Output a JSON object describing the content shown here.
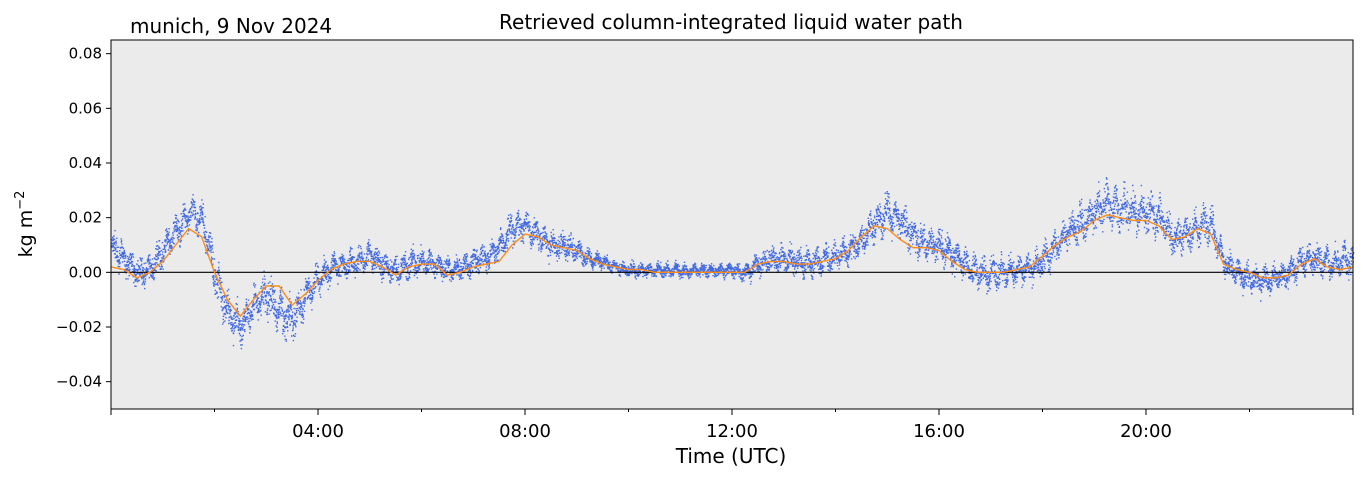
{
  "chart_data": {
    "type": "scatter",
    "title": "Retrieved column-integrated liquid water path",
    "subtitle": "munich, 9 Nov 2024",
    "xlabel": "Time (UTC)",
    "ylabel_base": "kg m",
    "ylabel_exponent": "−2",
    "xlim_hours": [
      0,
      24
    ],
    "ylim": [
      -0.05,
      0.085
    ],
    "x_ticks": [
      {
        "hour": 4,
        "label": "04:00"
      },
      {
        "hour": 8,
        "label": "08:00"
      },
      {
        "hour": 12,
        "label": "12:00"
      },
      {
        "hour": 16,
        "label": "16:00"
      },
      {
        "hour": 20,
        "label": "20:00"
      }
    ],
    "y_ticks": [
      {
        "value": -0.04,
        "label": "−0.04"
      },
      {
        "value": -0.02,
        "label": "−0.02"
      },
      {
        "value": 0.0,
        "label": "0.00"
      },
      {
        "value": 0.02,
        "label": "0.02"
      },
      {
        "value": 0.04,
        "label": "0.04"
      },
      {
        "value": 0.06,
        "label": "0.06"
      },
      {
        "value": 0.08,
        "label": "0.08"
      }
    ],
    "zero_line": true,
    "grid": false,
    "colors": {
      "scatter": "#4169e1",
      "mean_line": "#ff8c1a",
      "background": "#ebebeb",
      "zero_line": "#000000"
    },
    "series": [
      {
        "kind": "scatter",
        "x_hours": [
          0.0,
          0.25,
          0.5,
          0.75,
          1.0,
          1.25,
          1.5,
          1.75,
          2.0,
          2.25,
          2.5,
          2.75,
          3.0,
          3.25,
          3.5,
          3.75,
          4.0,
          4.25,
          4.5,
          4.75,
          5.0,
          5.25,
          5.5,
          5.75,
          6.0,
          6.25,
          6.5,
          6.75,
          7.0,
          7.25,
          7.5,
          7.75,
          8.0,
          8.25,
          8.5,
          8.75,
          9.0,
          9.25,
          9.5,
          9.75,
          10.0,
          10.25,
          10.5,
          10.75,
          11.0,
          11.25,
          11.5,
          11.75,
          12.0,
          12.25,
          12.5,
          12.75,
          13.0,
          13.25,
          13.5,
          13.75,
          14.0,
          14.25,
          14.5,
          14.75,
          15.0,
          15.25,
          15.5,
          15.75,
          16.0,
          16.25,
          16.5,
          16.75,
          17.0,
          17.25,
          17.5,
          17.75,
          18.0,
          18.25,
          18.5,
          18.75,
          19.0,
          19.25,
          19.5,
          19.75,
          20.0,
          20.25,
          20.5,
          20.75,
          21.0,
          21.25,
          21.5,
          21.75,
          22.0,
          22.25,
          22.5,
          22.75,
          23.0,
          23.25,
          23.5,
          23.75,
          24.0
        ],
        "y_center": [
          0.01,
          0.005,
          0.0,
          0.001,
          0.008,
          0.015,
          0.022,
          0.02,
          0.0,
          -0.015,
          -0.02,
          -0.012,
          -0.008,
          -0.014,
          -0.018,
          -0.008,
          -0.002,
          0.002,
          0.003,
          0.004,
          0.006,
          0.003,
          0.001,
          0.003,
          0.004,
          0.003,
          0.001,
          0.002,
          0.004,
          0.006,
          0.01,
          0.016,
          0.017,
          0.014,
          0.01,
          0.01,
          0.008,
          0.005,
          0.004,
          0.002,
          0.001,
          0.001,
          0.001,
          0.001,
          0.001,
          0.001,
          0.001,
          0.001,
          0.001,
          0.0,
          0.003,
          0.005,
          0.005,
          0.004,
          0.004,
          0.005,
          0.006,
          0.008,
          0.012,
          0.018,
          0.022,
          0.019,
          0.013,
          0.011,
          0.01,
          0.007,
          0.003,
          0.0,
          0.0,
          0.0,
          0.001,
          0.002,
          0.004,
          0.01,
          0.015,
          0.018,
          0.022,
          0.025,
          0.024,
          0.022,
          0.022,
          0.02,
          0.013,
          0.014,
          0.017,
          0.018,
          0.004,
          0.0,
          -0.002,
          -0.003,
          -0.002,
          0.0,
          0.004,
          0.005,
          0.004,
          0.004,
          0.005
        ],
        "y_spread": [
          0.007,
          0.006,
          0.006,
          0.006,
          0.007,
          0.007,
          0.007,
          0.007,
          0.009,
          0.009,
          0.008,
          0.008,
          0.009,
          0.009,
          0.009,
          0.008,
          0.007,
          0.006,
          0.006,
          0.006,
          0.006,
          0.006,
          0.006,
          0.006,
          0.006,
          0.005,
          0.005,
          0.005,
          0.006,
          0.006,
          0.006,
          0.007,
          0.007,
          0.006,
          0.006,
          0.006,
          0.005,
          0.004,
          0.003,
          0.003,
          0.003,
          0.003,
          0.003,
          0.003,
          0.003,
          0.003,
          0.003,
          0.003,
          0.003,
          0.004,
          0.005,
          0.006,
          0.006,
          0.006,
          0.006,
          0.006,
          0.006,
          0.006,
          0.007,
          0.008,
          0.009,
          0.008,
          0.008,
          0.007,
          0.007,
          0.007,
          0.007,
          0.007,
          0.007,
          0.007,
          0.006,
          0.006,
          0.007,
          0.007,
          0.007,
          0.008,
          0.009,
          0.01,
          0.01,
          0.009,
          0.009,
          0.009,
          0.008,
          0.007,
          0.007,
          0.007,
          0.006,
          0.006,
          0.006,
          0.006,
          0.006,
          0.006,
          0.007,
          0.007,
          0.007,
          0.007,
          0.007
        ]
      },
      {
        "kind": "line",
        "x_hours": [
          0.0,
          0.25,
          0.5,
          0.75,
          1.0,
          1.25,
          1.5,
          1.75,
          2.0,
          2.25,
          2.5,
          2.75,
          3.0,
          3.25,
          3.5,
          3.75,
          4.0,
          4.25,
          4.5,
          4.75,
          5.0,
          5.25,
          5.5,
          5.75,
          6.0,
          6.25,
          6.5,
          6.75,
          7.0,
          7.25,
          7.5,
          7.75,
          8.0,
          8.25,
          8.5,
          8.75,
          9.0,
          9.25,
          9.5,
          9.75,
          10.0,
          10.25,
          10.5,
          10.75,
          11.0,
          11.25,
          11.5,
          11.75,
          12.0,
          12.25,
          12.5,
          12.75,
          13.0,
          13.25,
          13.5,
          13.75,
          14.0,
          14.25,
          14.5,
          14.75,
          15.0,
          15.25,
          15.5,
          15.75,
          16.0,
          16.25,
          16.5,
          16.75,
          17.0,
          17.25,
          17.5,
          17.75,
          18.0,
          18.25,
          18.5,
          18.75,
          19.0,
          19.25,
          19.5,
          19.75,
          20.0,
          20.25,
          20.5,
          20.75,
          21.0,
          21.25,
          21.5,
          21.75,
          22.0,
          22.25,
          22.5,
          22.75,
          23.0,
          23.25,
          23.5,
          23.75,
          24.0
        ],
        "y": [
          0.002,
          0.001,
          -0.002,
          0.0,
          0.004,
          0.01,
          0.016,
          0.013,
          0.0,
          -0.01,
          -0.016,
          -0.01,
          -0.005,
          -0.005,
          -0.012,
          -0.008,
          -0.003,
          0.001,
          0.003,
          0.004,
          0.004,
          0.002,
          -0.001,
          0.002,
          0.003,
          0.003,
          -0.001,
          0.0,
          0.002,
          0.003,
          0.004,
          0.01,
          0.014,
          0.013,
          0.01,
          0.009,
          0.008,
          0.005,
          0.003,
          0.002,
          0.001,
          0.001,
          0.0,
          0.0,
          0.0,
          0.0,
          0.0,
          0.0,
          0.0,
          0.0,
          0.003,
          0.004,
          0.004,
          0.003,
          0.003,
          0.004,
          0.005,
          0.008,
          0.013,
          0.017,
          0.016,
          0.012,
          0.009,
          0.009,
          0.008,
          0.004,
          0.001,
          0.0,
          0.0,
          0.0,
          0.001,
          0.002,
          0.006,
          0.01,
          0.013,
          0.015,
          0.019,
          0.021,
          0.02,
          0.019,
          0.019,
          0.017,
          0.012,
          0.013,
          0.016,
          0.014,
          0.003,
          0.001,
          0.0,
          -0.002,
          -0.002,
          -0.001,
          0.003,
          0.005,
          0.002,
          0.001,
          0.002
        ]
      }
    ]
  }
}
